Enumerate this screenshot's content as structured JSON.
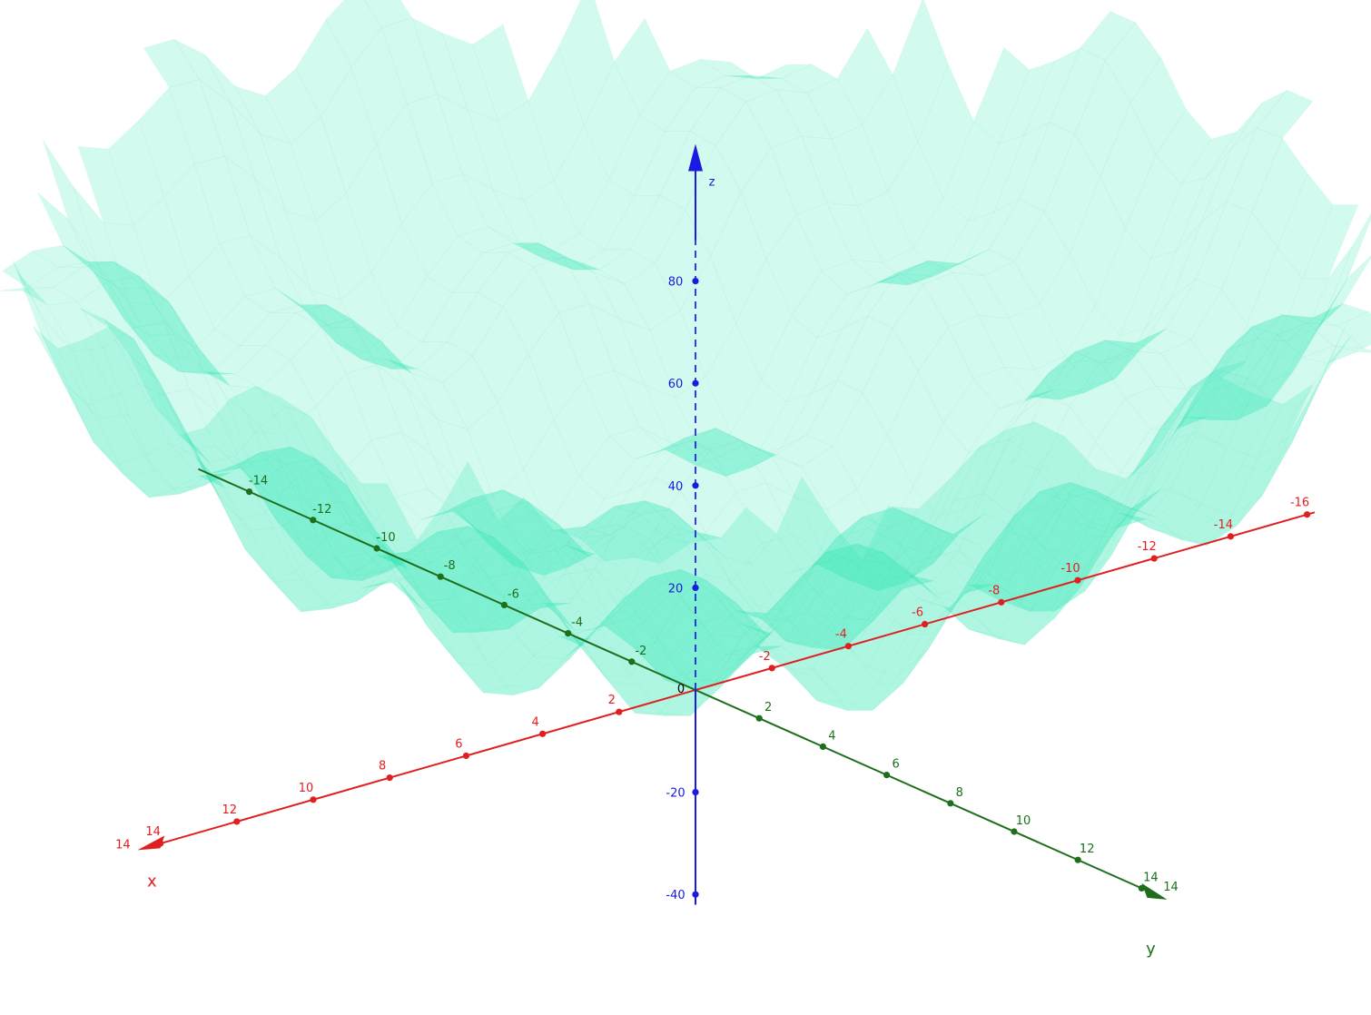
{
  "chart_data": {
    "type": "surface3d",
    "title": "",
    "description": "",
    "surface_color": "#3ee8bb",
    "surface_opacity": 0.55,
    "grid": false,
    "axes": {
      "x": {
        "label": "x",
        "color": "#e02020",
        "ticks": [
          {
            "value": -16,
            "label": "-16"
          },
          {
            "value": -14,
            "label": "-14"
          },
          {
            "value": -12,
            "label": "-12"
          },
          {
            "value": -10,
            "label": "-10"
          },
          {
            "value": -8,
            "label": "-8"
          },
          {
            "value": -6,
            "label": "-6"
          },
          {
            "value": -4,
            "label": "-4"
          },
          {
            "value": -2,
            "label": "-2"
          },
          {
            "value": 2,
            "label": "2"
          },
          {
            "value": 4,
            "label": "4"
          },
          {
            "value": 6,
            "label": "6"
          },
          {
            "value": 8,
            "label": "8"
          },
          {
            "value": 10,
            "label": "10"
          },
          {
            "value": 12,
            "label": "12"
          },
          {
            "value": 14,
            "label": "14"
          }
        ]
      },
      "y": {
        "label": "y",
        "color": "#1e6e1e",
        "ticks": [
          {
            "value": -14,
            "label": "-14"
          },
          {
            "value": -12,
            "label": "-12"
          },
          {
            "value": -10,
            "label": "-10"
          },
          {
            "value": -8,
            "label": "-8"
          },
          {
            "value": -6,
            "label": "-6"
          },
          {
            "value": -4,
            "label": "-4"
          },
          {
            "value": -2,
            "label": "-2"
          },
          {
            "value": 2,
            "label": "2"
          },
          {
            "value": 4,
            "label": "4"
          },
          {
            "value": 6,
            "label": "6"
          },
          {
            "value": 8,
            "label": "8"
          },
          {
            "value": 10,
            "label": "10"
          },
          {
            "value": 12,
            "label": "12"
          },
          {
            "value": 14,
            "label": "14"
          }
        ]
      },
      "z": {
        "label": "z",
        "color": "#1a1ae0",
        "ticks": [
          {
            "value": -40,
            "label": "-40"
          },
          {
            "value": -20,
            "label": "-20"
          },
          {
            "value": 20,
            "label": "20"
          },
          {
            "value": 40,
            "label": "40"
          },
          {
            "value": 60,
            "label": "60"
          },
          {
            "value": 80,
            "label": "80"
          }
        ]
      },
      "origin_label": "0"
    }
  }
}
